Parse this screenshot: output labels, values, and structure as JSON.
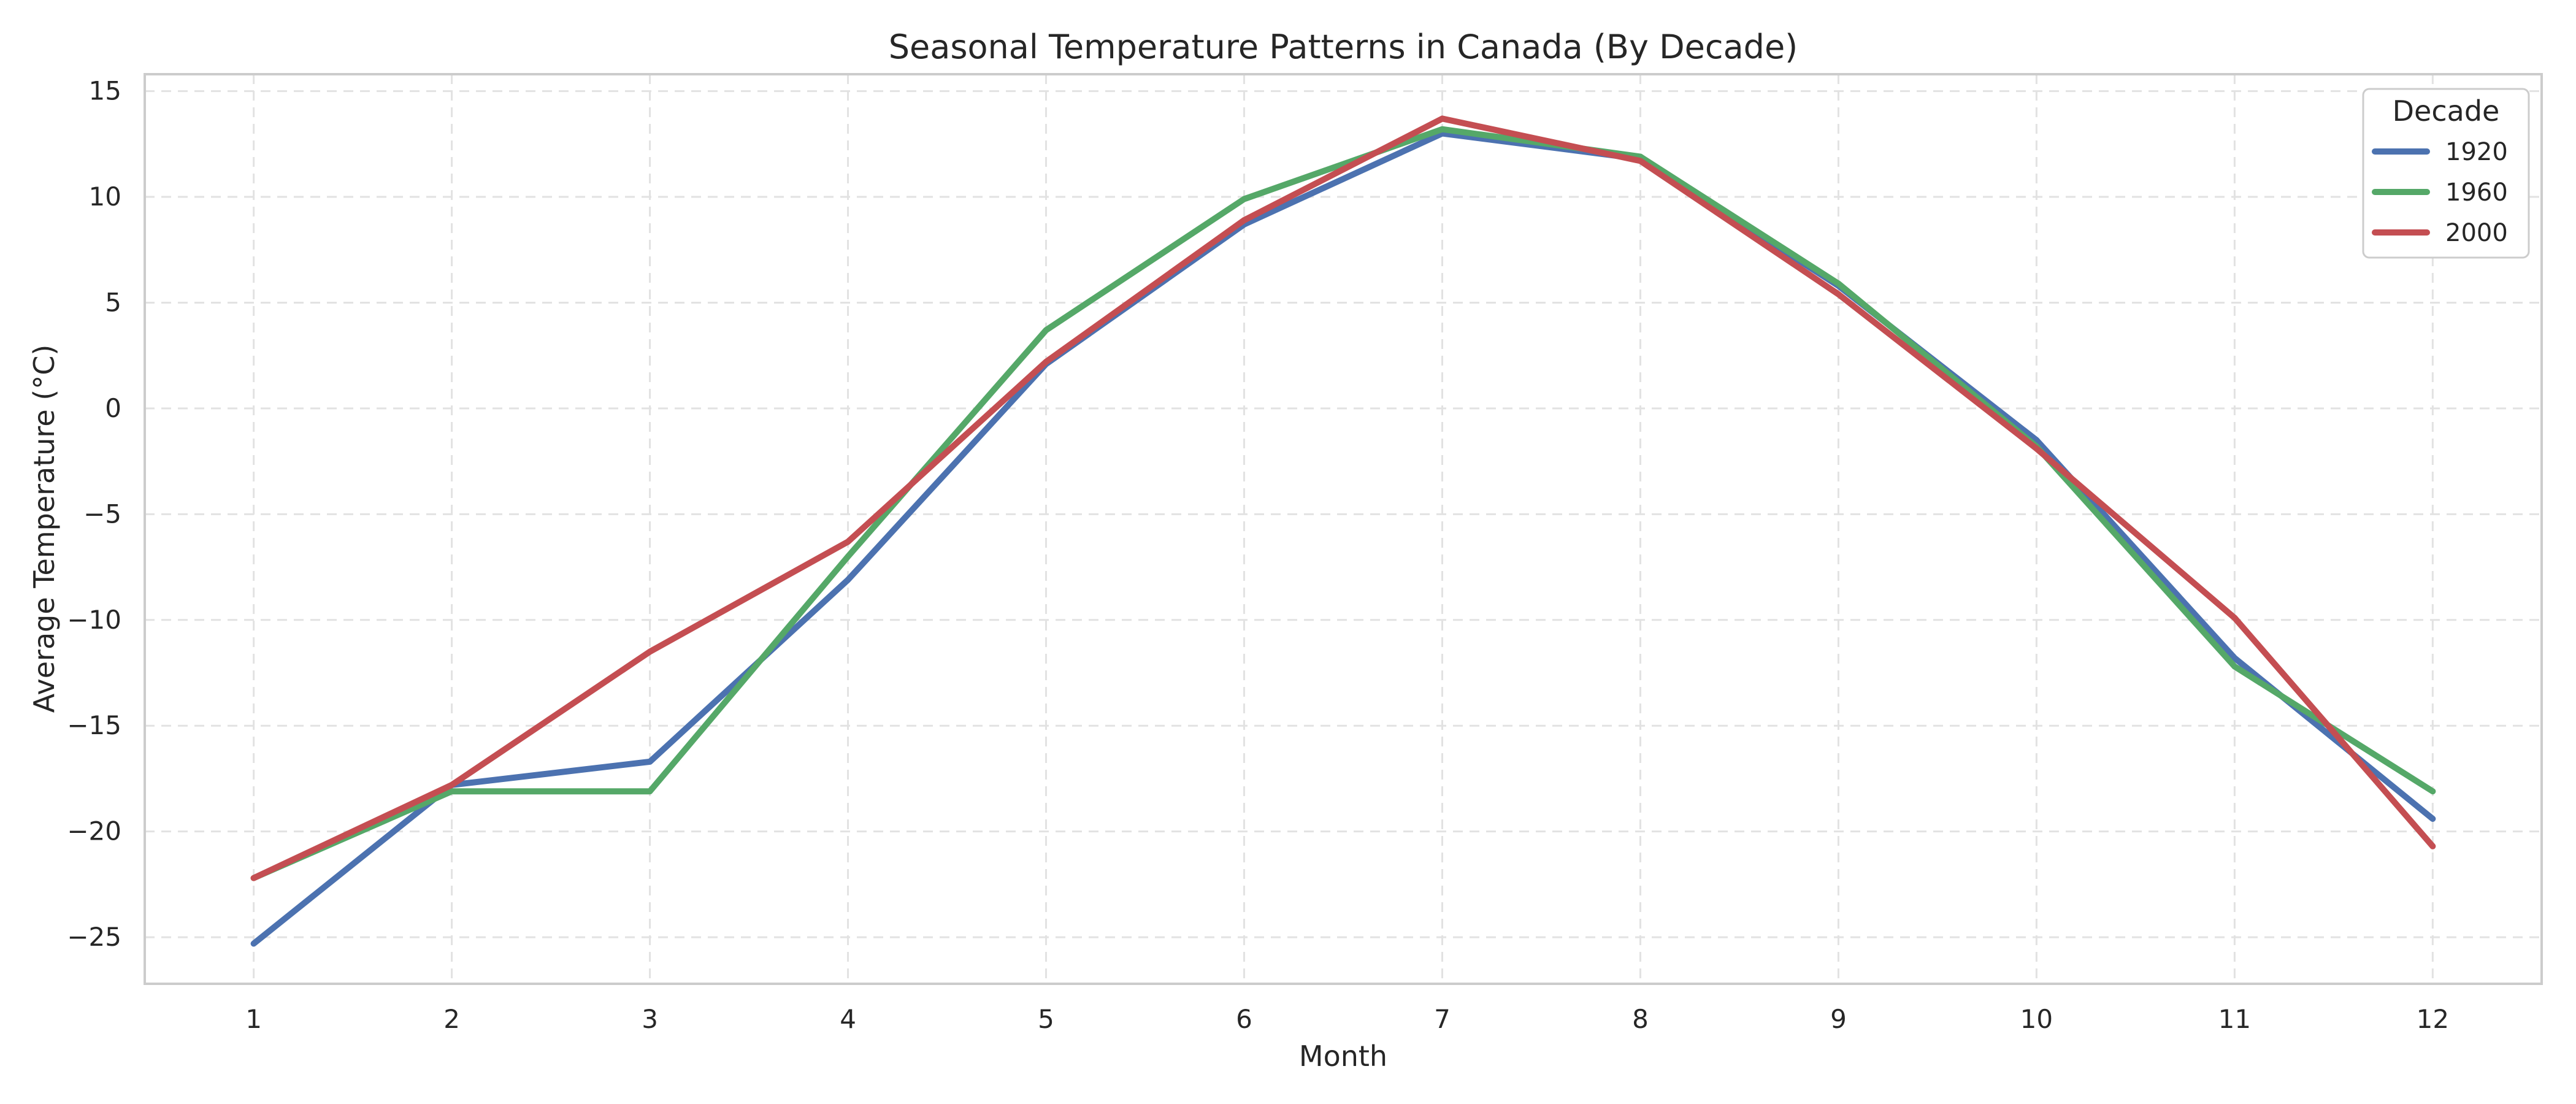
{
  "chart_data": {
    "type": "line",
    "title": "Seasonal Temperature Patterns in Canada (By Decade)",
    "xlabel": "Month",
    "ylabel": "Average Temperature (°C)",
    "x": [
      1,
      2,
      3,
      4,
      5,
      6,
      7,
      8,
      9,
      10,
      11,
      12
    ],
    "xlim": [
      0.45,
      12.55
    ],
    "ylim": [
      -27.2,
      15.8
    ],
    "yticks": [
      -25,
      -20,
      -15,
      -10,
      -5,
      0,
      5,
      10,
      15
    ],
    "ytick_labels": [
      "−25",
      "−20",
      "−15",
      "−10",
      "−5",
      "0",
      "5",
      "10",
      "15"
    ],
    "grid": true,
    "legend": {
      "title": "Decade",
      "placement": "top-right"
    },
    "series": [
      {
        "name": "1920",
        "color": "#4c72b0",
        "values": [
          -25.3,
          -17.8,
          -16.7,
          -8.1,
          2.1,
          8.7,
          13.0,
          11.8,
          5.8,
          -1.5,
          -11.8,
          -19.4
        ]
      },
      {
        "name": "1960",
        "color": "#55a868",
        "values": [
          -22.2,
          -18.1,
          -18.1,
          -7.0,
          3.7,
          9.9,
          13.2,
          11.9,
          5.9,
          -1.8,
          -12.2,
          -18.1
        ]
      },
      {
        "name": "2000",
        "color": "#c44e52",
        "values": [
          -22.2,
          -17.8,
          -11.5,
          -6.3,
          2.2,
          8.9,
          13.7,
          11.7,
          5.4,
          -1.9,
          -9.9,
          -20.7
        ]
      }
    ]
  }
}
